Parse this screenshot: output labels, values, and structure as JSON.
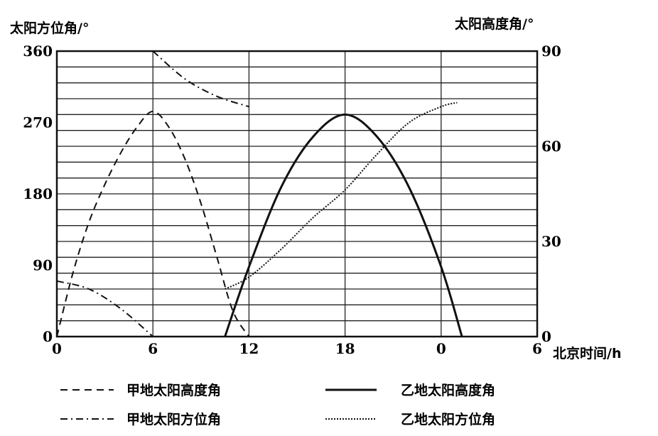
{
  "chart_data": {
    "type": "line",
    "y_left_label": "太阳方位角/°",
    "y_right_label": "太阳高度角/°",
    "x_label": "北京时间/h",
    "x_ticks": [
      "0",
      "6",
      "12",
      "18",
      "0",
      "6"
    ],
    "x_range": [
      0,
      30
    ],
    "y_left_ticks": [
      "0",
      "90",
      "180",
      "270",
      "360"
    ],
    "y_left_range": [
      0,
      360
    ],
    "y_right_ticks": [
      "0",
      "30",
      "60",
      "90"
    ],
    "y_right_range": [
      0,
      90
    ],
    "grid": "horizontal every 1/18 of range, vertical at each labeled hour",
    "series": [
      {
        "name": "甲地太阳高度角",
        "axis": "right",
        "style": "dashed",
        "x": [
          0,
          1,
          2,
          3,
          4,
          5,
          6,
          7,
          8,
          9,
          10,
          11,
          12
        ],
        "y": [
          0,
          20,
          36,
          48,
          58,
          66,
          71,
          66,
          56,
          42,
          25,
          8,
          0
        ]
      },
      {
        "name": "甲地太阳方位角",
        "axis": "left",
        "style": "dash-dot",
        "segments": [
          {
            "x": [
              0,
              2,
              4,
              6
            ],
            "y": [
              70,
              60,
              35,
              0
            ]
          },
          {
            "x": [
              6,
              8,
              10,
              12
            ],
            "y": [
              360,
              325,
              303,
              290
            ]
          }
        ]
      },
      {
        "name": "乙地太阳高度角",
        "axis": "right",
        "style": "solid",
        "x": [
          10.5,
          12,
          14,
          16,
          18,
          20,
          22,
          24,
          25.3
        ],
        "y": [
          0,
          22,
          47,
          63,
          70,
          63,
          47,
          22,
          0
        ]
      },
      {
        "name": "乙地太阳方位角",
        "axis": "left",
        "style": "dotted",
        "x": [
          10.5,
          12,
          14,
          16,
          18,
          20,
          22,
          24,
          25
        ],
        "y": [
          60,
          75,
          110,
          150,
          185,
          230,
          270,
          290,
          295
        ]
      }
    ]
  },
  "legend": [
    {
      "label": "甲地太阳高度角",
      "style": "dashed"
    },
    {
      "label": "乙地太阳高度角",
      "style": "solid"
    },
    {
      "label": "甲地太阳方位角",
      "style": "dash-dot"
    },
    {
      "label": "乙地太阳方位角",
      "style": "dotted"
    }
  ]
}
